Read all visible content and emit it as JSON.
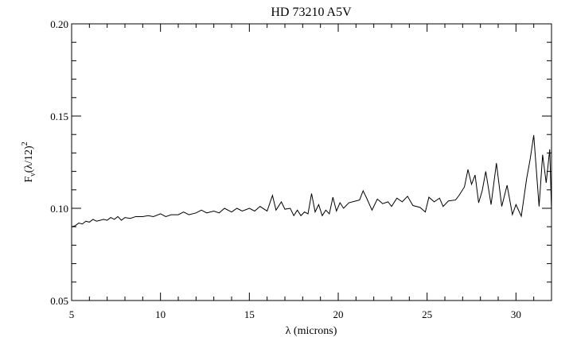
{
  "chart_data": {
    "type": "line",
    "title": "HD 73210 A5V",
    "xlabel": "λ (microns)",
    "ylabel": {
      "base": "F",
      "sub": "ν",
      "main": "(λ/12)",
      "sup": "2"
    },
    "xlim": [
      5,
      32
    ],
    "ylim": [
      0.05,
      0.2
    ],
    "xticks": [
      5,
      10,
      15,
      20,
      25,
      30
    ],
    "yticks": [
      0.05,
      {
        "value": 0.1,
        "label": "0.10"
      },
      0.15,
      {
        "value": 0.2,
        "label": "0.20"
      }
    ],
    "xminorticks": [
      6,
      7,
      8,
      9,
      11,
      12,
      13,
      14,
      16,
      17,
      18,
      19,
      21,
      22,
      23,
      24,
      26,
      27,
      28,
      29,
      31
    ],
    "yminorticks": [
      0.06,
      0.07,
      0.08,
      0.09,
      0.11,
      0.12,
      0.13,
      0.14,
      0.16,
      0.17,
      0.18,
      0.19
    ],
    "color": "#000000",
    "x": [
      5.0,
      5.2,
      5.4,
      5.6,
      5.8,
      6.0,
      6.2,
      6.4,
      6.6,
      6.8,
      7.0,
      7.2,
      7.4,
      7.6,
      7.8,
      8.0,
      8.3,
      8.6,
      9.0,
      9.3,
      9.6,
      10.0,
      10.3,
      10.6,
      11.0,
      11.3,
      11.6,
      12.0,
      12.3,
      12.6,
      13.0,
      13.3,
      13.6,
      14.0,
      14.3,
      14.6,
      15.0,
      15.3,
      15.6,
      16.0,
      16.3,
      16.5,
      16.8,
      17.0,
      17.3,
      17.5,
      17.7,
      17.9,
      18.1,
      18.3,
      18.5,
      18.7,
      18.9,
      19.1,
      19.3,
      19.5,
      19.7,
      19.9,
      20.1,
      20.3,
      20.6,
      21.0,
      21.2,
      21.4,
      21.6,
      21.9,
      22.2,
      22.5,
      22.8,
      23.0,
      23.3,
      23.6,
      23.9,
      24.2,
      24.6,
      24.9,
      25.1,
      25.4,
      25.7,
      25.9,
      26.2,
      26.6,
      26.8,
      27.1,
      27.3,
      27.5,
      27.7,
      27.9,
      28.1,
      28.3,
      28.6,
      28.9,
      29.2,
      29.5,
      29.8,
      30.0,
      30.3,
      30.6,
      30.8,
      31.0,
      31.3,
      31.5,
      31.7,
      31.9,
      32.0
    ],
    "values": [
      0.09,
      0.0905,
      0.092,
      0.0915,
      0.093,
      0.0925,
      0.094,
      0.093,
      0.0935,
      0.094,
      0.0935,
      0.095,
      0.094,
      0.0955,
      0.0935,
      0.095,
      0.0945,
      0.0955,
      0.0955,
      0.096,
      0.0955,
      0.097,
      0.0955,
      0.0965,
      0.0965,
      0.098,
      0.0965,
      0.0975,
      0.099,
      0.0975,
      0.0985,
      0.0975,
      0.1,
      0.098,
      0.1,
      0.0985,
      0.1,
      0.0985,
      0.101,
      0.0985,
      0.107,
      0.099,
      0.1035,
      0.0995,
      0.1,
      0.096,
      0.099,
      0.096,
      0.098,
      0.097,
      0.108,
      0.098,
      0.102,
      0.096,
      0.099,
      0.097,
      0.106,
      0.0985,
      0.103,
      0.1,
      0.103,
      0.104,
      0.1045,
      0.1095,
      0.1055,
      0.099,
      0.105,
      0.1025,
      0.1035,
      0.101,
      0.1055,
      0.1035,
      0.1065,
      0.1015,
      0.1005,
      0.098,
      0.106,
      0.1035,
      0.1055,
      0.101,
      0.104,
      0.1045,
      0.107,
      0.1116,
      0.121,
      0.113,
      0.118,
      0.103,
      0.1095,
      0.12,
      0.102,
      0.1245,
      0.101,
      0.1125,
      0.0966,
      0.102,
      0.0957,
      0.116,
      0.1267,
      0.1397,
      0.101,
      0.129,
      0.1138,
      0.132,
      0.0987
    ]
  }
}
